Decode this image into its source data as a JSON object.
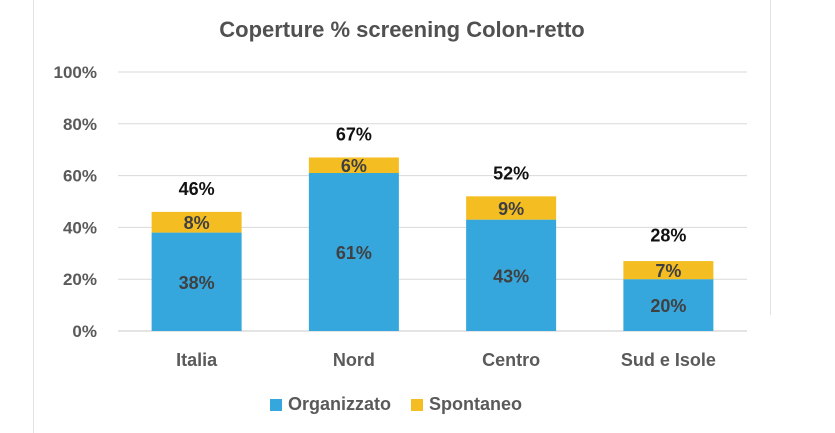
{
  "chart_data": {
    "type": "bar",
    "stacked": true,
    "title": "Coperture % screening Colon-retto",
    "categories": [
      "Italia",
      "Nord",
      "Centro",
      "Sud e Isole"
    ],
    "series": [
      {
        "name": "Organizzato",
        "color": "#35a7dd",
        "values": [
          38,
          61,
          43,
          20
        ],
        "labels": [
          "38%",
          "61%",
          "43%",
          "20%"
        ]
      },
      {
        "name": "Spontaneo",
        "color": "#f4be22",
        "values": [
          8,
          6,
          9,
          7
        ],
        "labels": [
          "8%",
          "6%",
          "9%",
          "7%"
        ]
      }
    ],
    "totals": [
      46,
      67,
      52,
      28
    ],
    "total_labels": [
      "46%",
      "67%",
      "52%",
      "28%"
    ],
    "ylim": [
      0,
      100
    ],
    "yticks": [
      "0%",
      "20%",
      "40%",
      "60%",
      "80%",
      "100%"
    ],
    "grid": true,
    "legend_position": "bottom"
  }
}
